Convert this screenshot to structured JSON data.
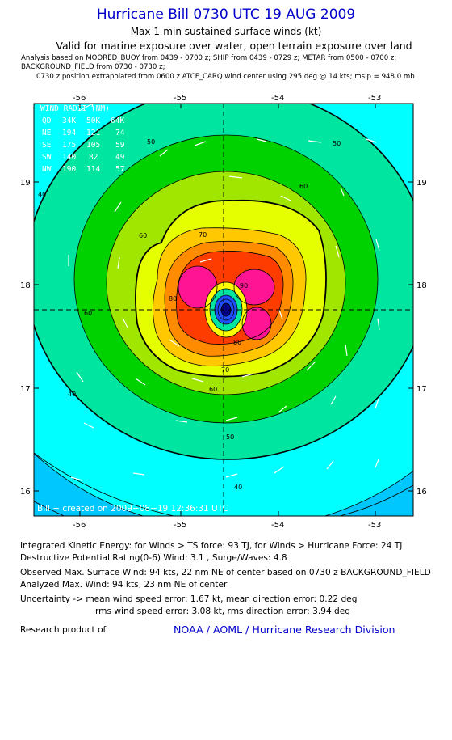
{
  "header": {
    "title": "Hurricane Bill 0730 UTC 19 AUG 2009",
    "subtitle": "Max 1-min sustained surface winds (kt)",
    "valid_line": "Valid for marine exposure over water, open terrain exposure over land",
    "analysis_line_1": "Analysis based on  MOORED_BUOY from 0439 - 0700 z;  SHIP from 0439 - 0729 z;  METAR from 0500 - 0700 z;",
    "analysis_line_2": "BACKGROUND_FIELD from 0730 - 0730 z;",
    "analysis_line_3": "0730 z position extrapolated from 0600 z ATCF_CARQ wind center using 295 deg @ 14 kts; mslp = 948.0 mb"
  },
  "map": {
    "lon_ticks": [
      "-56",
      "-55",
      "-54",
      "-53"
    ],
    "lat_ticks": [
      "19",
      "18",
      "17",
      "16"
    ],
    "credit": "Bill − created on 2009−08−19 12:36:31 UTC",
    "wind_radii": {
      "title": "WIND RADII (NM)",
      "header": [
        "QD",
        "34K",
        "50K",
        "64K"
      ],
      "rows": [
        [
          "NE",
          "194",
          "121",
          "74"
        ],
        [
          "SE",
          "175",
          "105",
          "59"
        ],
        [
          "SW",
          "140",
          "82",
          "49"
        ],
        [
          "NW",
          "190",
          "114",
          "57"
        ]
      ]
    },
    "contour_labels": [
      "50",
      "50",
      "60",
      "60",
      "40",
      "60",
      "70",
      "80",
      "90",
      "80",
      "70",
      "60",
      "50",
      "40",
      "40"
    ],
    "colors": {
      "c30": "#00c8ff",
      "c40": "#00ffff",
      "c50": "#00e6a0",
      "c60": "#00d200",
      "c70": "#a0e600",
      "c80": "#e6ff00",
      "c90": "#ffc800",
      "c100": "#ff8c00",
      "c110": "#ff3c00",
      "c120": "#ff1493",
      "eye": "#1e50ff",
      "eye_core": "#000080"
    }
  },
  "stats": {
    "ike": "Integrated Kinetic Energy:  for Winds > TS force: 93 TJ,  for Winds > Hurricane Force: 24 TJ",
    "dpr": "Destructive Potential Rating(0-6)   Wind: 3.1 , Surge/Waves: 4.8",
    "observed": "Observed Max. Surface Wind: 94 kts, 22 nm NE of center based on 0730 z BACKGROUND_FIELD",
    "analyzed": "Analyzed Max. Wind: 94 kts, 23 nm NE of center",
    "uncertainty_1": "Uncertainty -> mean wind speed error: 1.67 kt,   mean direction error: 0.22 deg",
    "uncertainty_2": "rms wind speed error: 3.08 kt,   rms direction error: 3.94 deg"
  },
  "footer": {
    "research": "Research product of",
    "org": "NOAA / AOML / Hurricane Research Division"
  }
}
